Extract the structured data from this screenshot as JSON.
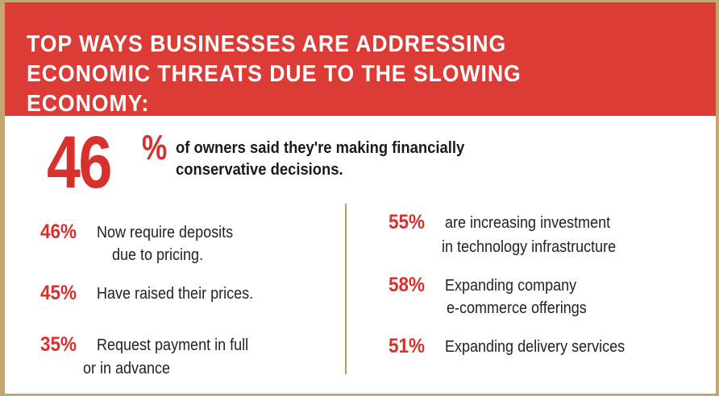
{
  "header": {
    "title_line1": "TOP WAYS BUSINESSES ARE ADDRESSING",
    "title_line2": "ECONOMIC THREATS DUE TO THE SLOWING ECONOMY:"
  },
  "hero": {
    "number": "46",
    "percent_sign": "%",
    "text_line1": "of owners said they're making financially",
    "text_line2": "conservative decisions."
  },
  "left_stats": [
    {
      "pct": "46%",
      "line1": "Now require deposits",
      "line2": "due to pricing."
    },
    {
      "pct": "45%",
      "line1": "Have raised their prices.",
      "line2": ""
    },
    {
      "pct": "35%",
      "line1": "Request payment in full",
      "line2": "or in advance"
    }
  ],
  "right_stats": [
    {
      "pct": "55%",
      "line1": "are increasing investment",
      "line2": "in technology infrastructure"
    },
    {
      "pct": "58%",
      "line1": "Expanding company",
      "line2": "e-commerce offerings"
    },
    {
      "pct": "51%",
      "line1": "Expanding delivery services",
      "line2": ""
    }
  ],
  "colors": {
    "accent_red": "#dc3b36",
    "border_gold": "#c4a574"
  }
}
